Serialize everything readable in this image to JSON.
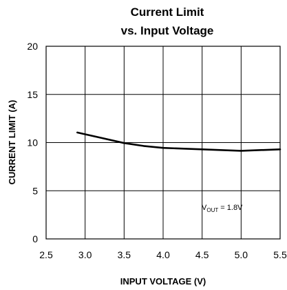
{
  "chart_data": {
    "type": "line",
    "title": [
      "Current Limit",
      "vs. Input Voltage"
    ],
    "xlabel": "INPUT VOLTAGE (V)",
    "ylabel": "CURRENT LIMIT (A)",
    "xlim": [
      2.5,
      5.5
    ],
    "ylim": [
      0,
      20
    ],
    "xticks": [
      "2.5",
      "3.0",
      "3.5",
      "4.0",
      "4.5",
      "5.0",
      "5.5"
    ],
    "yticks": [
      "0",
      "5",
      "10",
      "15",
      "20"
    ],
    "grid": true,
    "annotation": {
      "prefix": "V",
      "subscript": "OUT",
      "text": " = 1.8V"
    },
    "series": [
      {
        "x": [
          2.9,
          3.2,
          3.5,
          3.75,
          4.0,
          4.5,
          5.0,
          5.5
        ],
        "y": [
          11.05,
          10.5,
          9.95,
          9.65,
          9.45,
          9.3,
          9.15,
          9.3
        ]
      }
    ]
  }
}
